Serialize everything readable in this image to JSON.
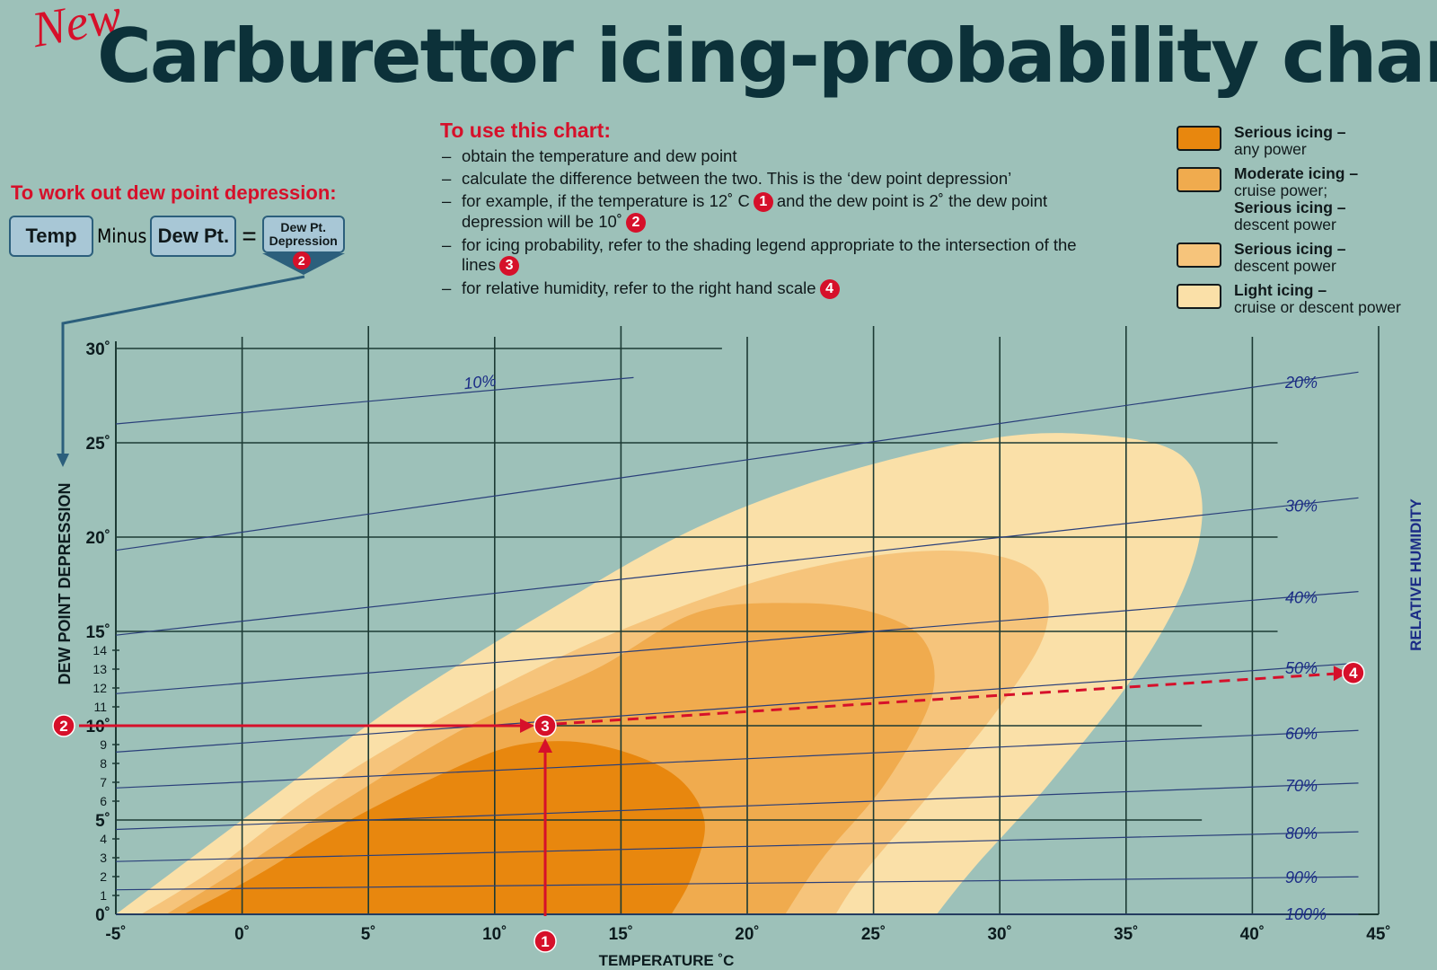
{
  "header": {
    "new_label": "New",
    "title": "Carburettor icing-probability chart"
  },
  "instructions": {
    "heading": "To use this chart:",
    "items": [
      {
        "parts": [
          "obtain the temperature and dew point"
        ]
      },
      {
        "parts": [
          "calculate the difference between the two. This is the ‘dew point depression’"
        ]
      },
      {
        "parts": [
          "for example, if the temperature is 12˚ C",
          "1",
          "and the dew point is 2˚ the dew point depression will be 10˚",
          "2"
        ]
      },
      {
        "parts": [
          "for icing probability, refer to the shading legend appropriate to the intersection of the lines",
          "3"
        ]
      },
      {
        "parts": [
          "for relative humidity, refer to the right hand scale",
          "4"
        ]
      }
    ]
  },
  "dew_point_calc": {
    "heading": "To work out dew point depression:",
    "temp": "Temp",
    "minus": "Minus",
    "dew_pt": "Dew Pt.",
    "equals": "=",
    "result_line1": "Dew Pt.",
    "result_line2": "Depression",
    "result_marker": "2"
  },
  "legend": [
    {
      "title": "Serious icing –",
      "lines": [
        "any power"
      ],
      "color": "#e8870e"
    },
    {
      "title": "Moderate icing –",
      "lines": [
        "cruise power;"
      ],
      "title2": "Serious icing –",
      "lines2": [
        "descent power"
      ],
      "color": "#f0ab4e"
    },
    {
      "title": "Serious icing –",
      "lines": [
        "descent power"
      ],
      "color": "#f6c47b"
    },
    {
      "title": "Light icing –",
      "lines": [
        "cruise or descent power"
      ],
      "color": "#fae0a8"
    }
  ],
  "chart_data": {
    "type": "area",
    "xlabel": "TEMPERATURE ˚C",
    "ylabel": "DEW POINT DEPRESSION",
    "y2label": "RELATIVE HUMIDITY",
    "xlim": [
      -5,
      45
    ],
    "ylim": [
      0,
      30
    ],
    "x_ticks": [
      "-5˚",
      "0˚",
      "5˚",
      "10˚",
      "15˚",
      "20˚",
      "25˚",
      "30˚",
      "35˚",
      "40˚",
      "45˚"
    ],
    "x_tick_values": [
      -5,
      0,
      5,
      10,
      15,
      20,
      25,
      30,
      35,
      40,
      45
    ],
    "y_ticks_major": [
      0,
      5,
      10,
      15,
      20,
      25,
      30
    ],
    "y_ticks_major_labels": [
      "0˚",
      "5˚",
      "10˚",
      "15˚",
      "20˚",
      "25˚",
      "30˚"
    ],
    "y_ticks_minor": [
      1,
      2,
      3,
      4,
      6,
      7,
      8,
      9,
      11,
      12,
      13,
      14
    ],
    "y_ticks_minor_labels": [
      "1",
      "2",
      "3",
      "4",
      "6",
      "7",
      "8",
      "9",
      "11",
      "12",
      "13",
      "14"
    ],
    "humidity_lines": [
      {
        "label": "10%",
        "y_at_left": 26.0,
        "y_at_right": 32.0,
        "x_end": 15.5
      },
      {
        "label": "20%",
        "y_at_left": 19.3,
        "y_at_right": 28.9
      },
      {
        "label": "30%",
        "y_at_left": 14.8,
        "y_at_right": 22.2
      },
      {
        "label": "40%",
        "y_at_left": 11.7,
        "y_at_right": 17.2
      },
      {
        "label": "50%",
        "y_at_left": 8.6,
        "y_at_right": 13.4
      },
      {
        "label": "60%",
        "y_at_left": 6.7,
        "y_at_right": 9.8
      },
      {
        "label": "70%",
        "y_at_left": 4.5,
        "y_at_right": 7.0
      },
      {
        "label": "80%",
        "y_at_left": 2.8,
        "y_at_right": 4.4
      },
      {
        "label": "90%",
        "y_at_left": 1.3,
        "y_at_right": 2.0
      },
      {
        "label": "100%",
        "y_at_left": 0,
        "y_at_right": 0
      }
    ],
    "regions": [
      {
        "name": "Light icing",
        "color": "#fae0a8",
        "points": [
          [
            -5,
            0
          ],
          [
            -3,
            2
          ],
          [
            1,
            6
          ],
          [
            6,
            11
          ],
          [
            12,
            16
          ],
          [
            18,
            20.5
          ],
          [
            24,
            23.5
          ],
          [
            30,
            25.3
          ],
          [
            34,
            25.4
          ],
          [
            37,
            24.5
          ],
          [
            38,
            22
          ],
          [
            37.5,
            18
          ],
          [
            35.5,
            13
          ],
          [
            32,
            7
          ],
          [
            29,
            2.5
          ],
          [
            27.5,
            0
          ]
        ]
      },
      {
        "name": "Serious icing – descent power",
        "color": "#f6c47b",
        "points": [
          [
            -4,
            0
          ],
          [
            -1,
            2.5
          ],
          [
            3,
            6.5
          ],
          [
            8,
            10.5
          ],
          [
            14,
            14.5
          ],
          [
            20,
            17.5
          ],
          [
            25,
            19
          ],
          [
            29,
            19.2
          ],
          [
            31.5,
            18
          ],
          [
            31.8,
            15
          ],
          [
            30,
            11
          ],
          [
            27,
            6
          ],
          [
            24.5,
            2
          ],
          [
            23.5,
            0
          ]
        ]
      },
      {
        "name": "Moderate icing",
        "color": "#f0ab4e",
        "points": [
          [
            -3,
            0
          ],
          [
            0,
            2.5
          ],
          [
            4,
            6
          ],
          [
            9,
            10
          ],
          [
            14,
            13
          ],
          [
            18,
            16
          ],
          [
            22,
            16.5
          ],
          [
            25,
            16
          ],
          [
            27,
            14.5
          ],
          [
            27.3,
            11.5
          ],
          [
            25.5,
            7
          ],
          [
            23,
            3
          ],
          [
            21.5,
            0
          ]
        ]
      },
      {
        "name": "Serious icing – any power",
        "color": "#e8870e",
        "points": [
          [
            -2.3,
            0
          ],
          [
            0.5,
            2
          ],
          [
            4,
            4.8
          ],
          [
            8,
            7.5
          ],
          [
            11,
            9
          ],
          [
            14,
            9
          ],
          [
            17,
            7.5
          ],
          [
            18.3,
            5
          ],
          [
            17.8,
            2
          ],
          [
            17,
            0
          ]
        ]
      }
    ],
    "example": {
      "temperature": 12,
      "dew_point_depression": 10,
      "relative_humidity": "50%",
      "markers": [
        "1",
        "2",
        "3",
        "4"
      ]
    }
  }
}
